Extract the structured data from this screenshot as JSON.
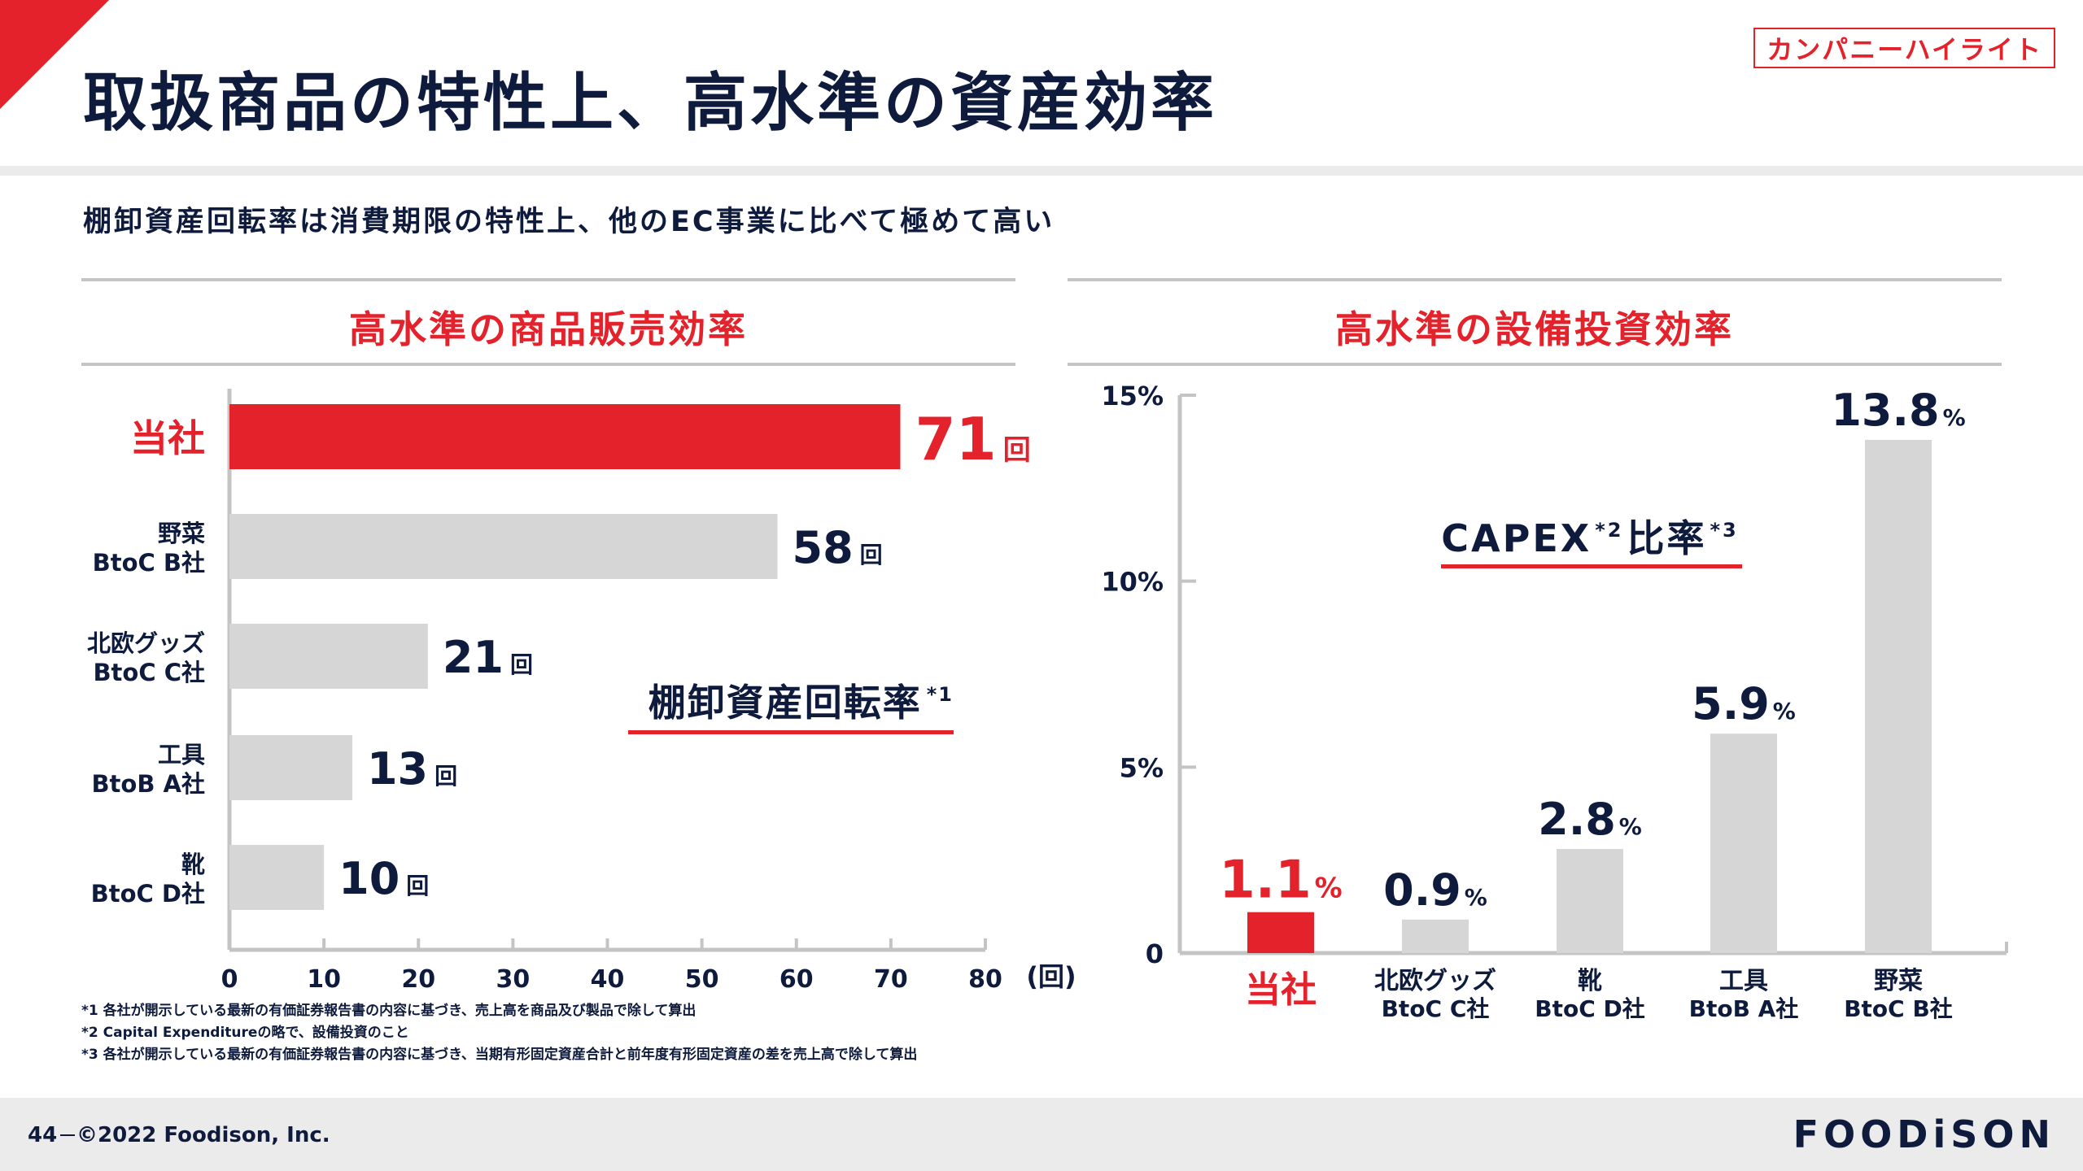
{
  "tag": "カンパニーハイライト",
  "title": "取扱商品の特性上、高水準の資産効率",
  "subtitle": "棚卸資産回転率は消費期限の特性上、他のEC事業に比べて極めて高い",
  "colors": {
    "accent": "#e3222b",
    "navy": "#0e1b3d",
    "bar": "#d6d6d6",
    "rule": "#c4c4c4"
  },
  "left_panel": {
    "title": "高水準の商品販売効率"
  },
  "right_panel": {
    "title": "高水準の設備投資効率"
  },
  "chart_data": [
    {
      "type": "bar",
      "orientation": "horizontal",
      "categories": [
        [
          "当社"
        ],
        [
          "野菜",
          "BtoC B社"
        ],
        [
          "北欧グッズ",
          "BtoC C社"
        ],
        [
          "工具",
          "BtoB A社"
        ],
        [
          "靴",
          "BtoC D社"
        ]
      ],
      "values": [
        71,
        58,
        21,
        13,
        10
      ],
      "highlight_index": 0,
      "value_unit": "回",
      "annotation": {
        "main": "棚卸資産回転率",
        "note": "*1"
      },
      "xlim": [
        0,
        80
      ],
      "xticks": [
        0,
        10,
        20,
        30,
        40,
        50,
        60,
        70,
        80
      ],
      "xunit": "(回)",
      "grid": false
    },
    {
      "type": "bar",
      "orientation": "vertical",
      "categories": [
        [
          "当社"
        ],
        [
          "北欧グッズ",
          "BtoC C社"
        ],
        [
          "靴",
          "BtoC D社"
        ],
        [
          "工具",
          "BtoB A社"
        ],
        [
          "野菜",
          "BtoC B社"
        ]
      ],
      "values": [
        1.1,
        0.9,
        2.8,
        5.9,
        13.8
      ],
      "highlight_index": 0,
      "value_unit": "%",
      "annotation": {
        "main": "CAPEX",
        "sup1": "*2",
        "mid": "比率",
        "sup2": "*3"
      },
      "ylim": [
        0,
        15
      ],
      "yticks": [
        "0",
        "5%",
        "10%",
        "15%"
      ],
      "ytick_values": [
        0,
        5,
        10,
        15
      ],
      "grid": false
    }
  ],
  "footnotes": [
    "*1 各社が開示している最新の有価証券報告書の内容に基づき、売上高を商品及び製品で除して算出",
    "*2 Capital Expenditureの略で、設備投資のこと",
    "*3 各社が開示している最新の有価証券報告書の内容に基づき、当期有形固定資産合計と前年度有形固定資産の差を売上高で除して算出"
  ],
  "footer": {
    "page": "44",
    "copyright": "©2022 Foodison, Inc.",
    "logo": "FOODiSON"
  }
}
